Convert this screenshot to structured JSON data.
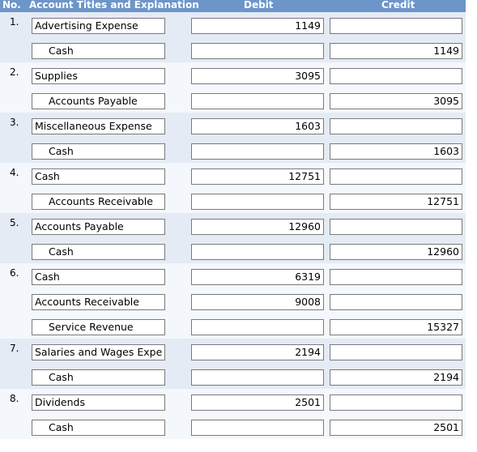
{
  "header": {
    "no": "No.",
    "title": "Account Titles and Explanation",
    "debit": "Debit",
    "credit": "Credit"
  },
  "rows": [
    {
      "no": "1.",
      "account": "Advertising Expense",
      "debit": "1149",
      "credit": ""
    },
    {
      "no": "",
      "account": "Cash",
      "debit": "",
      "credit": "1149"
    },
    {
      "no": "2.",
      "account": "Supplies",
      "debit": "3095",
      "credit": ""
    },
    {
      "no": "",
      "account": "Accounts Payable",
      "debit": "",
      "credit": "3095"
    },
    {
      "no": "3.",
      "account": "Miscellaneous Expense",
      "debit": "1603",
      "credit": ""
    },
    {
      "no": "",
      "account": "Cash",
      "debit": "",
      "credit": "1603"
    },
    {
      "no": "4.",
      "account": "Cash",
      "debit": "12751",
      "credit": ""
    },
    {
      "no": "",
      "account": "Accounts Receivable",
      "debit": "",
      "credit": "12751"
    },
    {
      "no": "5.",
      "account": "Accounts Payable",
      "debit": "12960",
      "credit": ""
    },
    {
      "no": "",
      "account": "Cash",
      "debit": "",
      "credit": "12960"
    },
    {
      "no": "6.",
      "account": "Cash",
      "debit": "6319",
      "credit": ""
    },
    {
      "no": "",
      "account": "Accounts Receivable",
      "debit": "9008",
      "credit": ""
    },
    {
      "no": "",
      "account": "Service Revenue",
      "debit": "",
      "credit": "15327"
    },
    {
      "no": "7.",
      "account": "Salaries and Wages Expe",
      "debit": "2194",
      "credit": ""
    },
    {
      "no": "",
      "account": "Cash",
      "debit": "",
      "credit": "2194"
    },
    {
      "no": "8.",
      "account": "Dividends",
      "debit": "2501",
      "credit": ""
    },
    {
      "no": "",
      "account": "Cash",
      "debit": "",
      "credit": "2501"
    }
  ]
}
